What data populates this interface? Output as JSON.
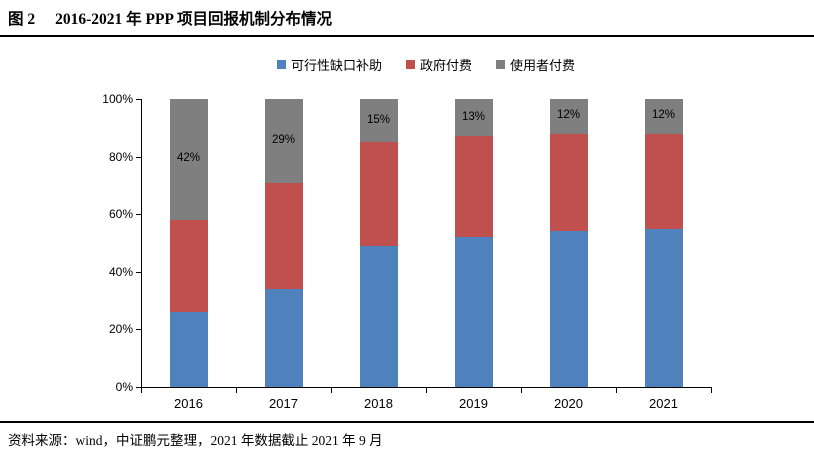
{
  "header": {
    "figure_label": "图 2",
    "title": "2016-2021 年 PPP 项目回报机制分布情况"
  },
  "footer": {
    "source_text": "资料来源：wind，中证鹏元整理，2021 年数据截止 2021 年 9 月"
  },
  "colors": {
    "series_blue": "#4F81BD",
    "series_red": "#C0504D",
    "series_gray": "#7F7F7F",
    "axis": "#000000",
    "rule": "#000000"
  },
  "chart_data": {
    "type": "bar",
    "stacked": true,
    "percent_stacked": true,
    "title": "2016-2021 年 PPP 项目回报机制分布情况",
    "categories": [
      "2016",
      "2017",
      "2018",
      "2019",
      "2020",
      "2021"
    ],
    "series": [
      {
        "name": "可行性缺口补助",
        "color": "#4F81BD",
        "values": [
          26,
          34,
          49,
          52,
          54,
          55
        ]
      },
      {
        "name": "政府付费",
        "color": "#C0504D",
        "values": [
          32,
          37,
          36,
          35,
          34,
          33
        ]
      },
      {
        "name": "使用者付费",
        "color": "#7F7F7F",
        "values": [
          42,
          29,
          15,
          13,
          12,
          12
        ],
        "data_labels": [
          "42%",
          "29%",
          "15%",
          "13%",
          "12%",
          "12%"
        ]
      }
    ],
    "ylim": [
      0,
      100
    ],
    "yticks": [
      0,
      20,
      40,
      60,
      80,
      100
    ],
    "ytick_labels": [
      "0%",
      "20%",
      "40%",
      "60%",
      "80%",
      "100%"
    ],
    "xlabel": "",
    "ylabel": "",
    "grid": false,
    "legend_position": "top"
  }
}
